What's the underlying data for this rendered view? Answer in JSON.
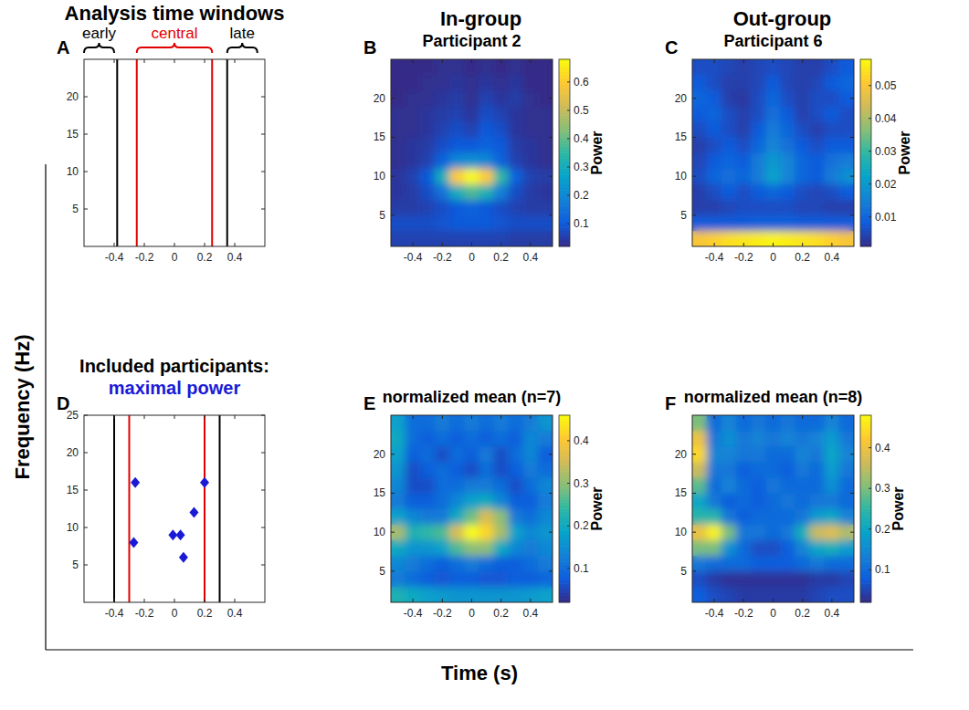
{
  "figure": {
    "column_titles": [
      "In-group",
      "Out-group"
    ],
    "ylabel": "Frequency (Hz)",
    "xlabel": "Time (s)"
  },
  "chart_data": [
    {
      "type": "lines",
      "letter": "A",
      "title": "Analysis time windows",
      "xlim": [
        -0.6,
        0.6
      ],
      "ylim": [
        0,
        25
      ],
      "xticks": [
        -0.4,
        -0.2,
        0,
        0.2,
        0.4
      ],
      "yticks": [
        5,
        10,
        15,
        20
      ],
      "vlines": [
        {
          "x": -0.38,
          "color": "#000000"
        },
        {
          "x": -0.25,
          "color": "#e00000"
        },
        {
          "x": 0.25,
          "color": "#e00000"
        },
        {
          "x": 0.35,
          "color": "#000000"
        }
      ],
      "windows": [
        {
          "label": "early",
          "color": "#000000",
          "range": [
            -0.6,
            -0.4
          ]
        },
        {
          "label": "central",
          "color": "#e00000",
          "range": [
            -0.25,
            0.25
          ]
        },
        {
          "label": "late",
          "color": "#000000",
          "range": [
            0.35,
            0.55
          ]
        }
      ]
    },
    {
      "type": "heatmap",
      "letter": "B",
      "title": "Participant 2",
      "xlim": [
        -0.55,
        0.55
      ],
      "ylim": [
        1,
        25
      ],
      "xticks": [
        -0.4,
        -0.2,
        0,
        0.2,
        0.4
      ],
      "yticks": [
        5,
        10,
        15,
        20
      ],
      "x_edges": [
        -0.55,
        -0.45,
        -0.35,
        -0.25,
        -0.15,
        -0.05,
        0.05,
        0.15,
        0.25,
        0.35,
        0.45,
        0.55
      ],
      "y_edges": [
        1,
        3,
        5,
        7,
        9,
        11,
        13,
        15,
        17,
        19,
        21,
        23,
        25
      ],
      "cells": [
        [
          0.06,
          0.06,
          0.06,
          0.06,
          0.06,
          0.06,
          0.06,
          0.06,
          0.05,
          0.05,
          0.05
        ],
        [
          0.08,
          0.08,
          0.08,
          0.09,
          0.1,
          0.1,
          0.1,
          0.09,
          0.08,
          0.08,
          0.08
        ],
        [
          0.05,
          0.05,
          0.06,
          0.08,
          0.1,
          0.12,
          0.1,
          0.08,
          0.06,
          0.05,
          0.05
        ],
        [
          0.04,
          0.05,
          0.08,
          0.15,
          0.3,
          0.38,
          0.32,
          0.18,
          0.08,
          0.05,
          0.04
        ],
        [
          0.04,
          0.06,
          0.1,
          0.3,
          0.6,
          0.68,
          0.6,
          0.35,
          0.12,
          0.06,
          0.05
        ],
        [
          0.03,
          0.04,
          0.06,
          0.12,
          0.2,
          0.22,
          0.2,
          0.12,
          0.06,
          0.04,
          0.03
        ],
        [
          0.03,
          0.04,
          0.05,
          0.08,
          0.1,
          0.1,
          0.12,
          0.1,
          0.05,
          0.04,
          0.03
        ],
        [
          0.03,
          0.03,
          0.04,
          0.06,
          0.08,
          0.06,
          0.1,
          0.08,
          0.04,
          0.03,
          0.03
        ],
        [
          0.03,
          0.03,
          0.04,
          0.05,
          0.06,
          0.04,
          0.08,
          0.06,
          0.04,
          0.03,
          0.03
        ],
        [
          0.02,
          0.03,
          0.03,
          0.04,
          0.05,
          0.03,
          0.06,
          0.04,
          0.05,
          0.03,
          0.02
        ],
        [
          0.02,
          0.02,
          0.03,
          0.03,
          0.04,
          0.03,
          0.04,
          0.03,
          0.04,
          0.02,
          0.02
        ],
        [
          0.02,
          0.02,
          0.02,
          0.03,
          0.03,
          0.02,
          0.03,
          0.02,
          0.03,
          0.02,
          0.02
        ]
      ],
      "color_range": [
        0.02,
        0.68
      ],
      "color_ticks": [
        0.1,
        0.2,
        0.3,
        0.4,
        0.5,
        0.6
      ],
      "colorbar_label": "Power"
    },
    {
      "type": "heatmap",
      "letter": "C",
      "title": "Participant 6",
      "xlim": [
        -0.55,
        0.55
      ],
      "ylim": [
        1,
        25
      ],
      "xticks": [
        -0.4,
        -0.2,
        0,
        0.2,
        0.4
      ],
      "yticks": [
        5,
        10,
        15,
        20
      ],
      "x_edges": [
        -0.55,
        -0.45,
        -0.35,
        -0.25,
        -0.15,
        -0.05,
        0.05,
        0.15,
        0.25,
        0.35,
        0.45,
        0.55
      ],
      "y_edges": [
        1,
        3,
        5,
        7,
        9,
        11,
        13,
        15,
        17,
        19,
        21,
        23,
        25
      ],
      "cells": [
        [
          0.05,
          0.052,
          0.054,
          0.055,
          0.056,
          0.057,
          0.056,
          0.055,
          0.054,
          0.052,
          0.05
        ],
        [
          0.008,
          0.008,
          0.008,
          0.008,
          0.009,
          0.009,
          0.009,
          0.008,
          0.008,
          0.008,
          0.008
        ],
        [
          0.004,
          0.004,
          0.005,
          0.006,
          0.006,
          0.006,
          0.006,
          0.005,
          0.005,
          0.004,
          0.004
        ],
        [
          0.004,
          0.006,
          0.008,
          0.006,
          0.008,
          0.01,
          0.008,
          0.006,
          0.005,
          0.006,
          0.008
        ],
        [
          0.006,
          0.01,
          0.012,
          0.01,
          0.014,
          0.022,
          0.016,
          0.01,
          0.008,
          0.014,
          0.018
        ],
        [
          0.005,
          0.008,
          0.01,
          0.008,
          0.014,
          0.02,
          0.016,
          0.01,
          0.008,
          0.012,
          0.014
        ],
        [
          0.004,
          0.006,
          0.008,
          0.006,
          0.01,
          0.016,
          0.012,
          0.008,
          0.006,
          0.008,
          0.008
        ],
        [
          0.006,
          0.008,
          0.006,
          0.004,
          0.008,
          0.014,
          0.01,
          0.006,
          0.004,
          0.006,
          0.006
        ],
        [
          0.008,
          0.01,
          0.006,
          0.004,
          0.006,
          0.012,
          0.008,
          0.004,
          0.006,
          0.008,
          0.006
        ],
        [
          0.01,
          0.008,
          0.004,
          0.003,
          0.006,
          0.01,
          0.006,
          0.004,
          0.006,
          0.006,
          0.008
        ],
        [
          0.008,
          0.006,
          0.004,
          0.004,
          0.005,
          0.008,
          0.005,
          0.004,
          0.005,
          0.008,
          0.01
        ],
        [
          0.006,
          0.006,
          0.005,
          0.004,
          0.005,
          0.006,
          0.005,
          0.004,
          0.004,
          0.006,
          0.008
        ]
      ],
      "color_range": [
        0.001,
        0.058
      ],
      "color_ticks": [
        0.01,
        0.02,
        0.03,
        0.04,
        0.05
      ],
      "colorbar_label": "Power"
    },
    {
      "type": "scatter",
      "letter": "D",
      "title": "Included participants:",
      "xlim": [
        -0.6,
        0.6
      ],
      "ylim": [
        0,
        25
      ],
      "xticks": [
        -0.4,
        -0.2,
        0,
        0.2,
        0.4
      ],
      "yticks": [
        5,
        10,
        15,
        20,
        25
      ],
      "vlines": [
        {
          "x": -0.4,
          "color": "#000000"
        },
        {
          "x": -0.3,
          "color": "#e00000"
        },
        {
          "x": 0.2,
          "color": "#e00000"
        },
        {
          "x": 0.3,
          "color": "#000000"
        }
      ],
      "series": [
        {
          "name": "maximal power",
          "color": "#1a1ad6",
          "marker": "diamond",
          "x": [
            -0.26,
            -0.27,
            -0.01,
            0.04,
            0.06,
            0.13,
            0.2
          ],
          "values": [
            16,
            8,
            9,
            9,
            6,
            12,
            16
          ]
        }
      ]
    },
    {
      "type": "heatmap",
      "letter": "E",
      "title": "normalized mean (n=7)",
      "xlim": [
        -0.55,
        0.55
      ],
      "ylim": [
        1,
        25
      ],
      "xticks": [
        -0.4,
        -0.2,
        0,
        0.2,
        0.4
      ],
      "yticks": [
        5,
        10,
        15,
        20
      ],
      "x_edges": [
        -0.55,
        -0.45,
        -0.35,
        -0.25,
        -0.15,
        -0.05,
        0.05,
        0.15,
        0.25,
        0.35,
        0.45,
        0.55
      ],
      "y_edges": [
        1,
        3,
        5,
        7,
        9,
        11,
        13,
        15,
        17,
        19,
        21,
        23,
        25
      ],
      "cells": [
        [
          0.22,
          0.2,
          0.18,
          0.17,
          0.16,
          0.16,
          0.16,
          0.16,
          0.16,
          0.17,
          0.18
        ],
        [
          0.12,
          0.1,
          0.08,
          0.07,
          0.08,
          0.08,
          0.07,
          0.07,
          0.08,
          0.08,
          0.09
        ],
        [
          0.14,
          0.12,
          0.1,
          0.08,
          0.1,
          0.12,
          0.1,
          0.08,
          0.08,
          0.1,
          0.12
        ],
        [
          0.2,
          0.16,
          0.16,
          0.18,
          0.26,
          0.3,
          0.3,
          0.2,
          0.14,
          0.12,
          0.14
        ],
        [
          0.32,
          0.22,
          0.24,
          0.26,
          0.36,
          0.46,
          0.42,
          0.32,
          0.18,
          0.14,
          0.16
        ],
        [
          0.18,
          0.14,
          0.12,
          0.12,
          0.2,
          0.28,
          0.36,
          0.3,
          0.12,
          0.1,
          0.14
        ],
        [
          0.12,
          0.08,
          0.08,
          0.1,
          0.14,
          0.18,
          0.2,
          0.14,
          0.08,
          0.08,
          0.12
        ],
        [
          0.14,
          0.06,
          0.06,
          0.1,
          0.1,
          0.12,
          0.12,
          0.1,
          0.06,
          0.1,
          0.14
        ],
        [
          0.16,
          0.06,
          0.08,
          0.1,
          0.08,
          0.06,
          0.1,
          0.06,
          0.08,
          0.12,
          0.1
        ],
        [
          0.18,
          0.08,
          0.1,
          0.06,
          0.1,
          0.08,
          0.12,
          0.06,
          0.1,
          0.14,
          0.08
        ],
        [
          0.2,
          0.1,
          0.08,
          0.1,
          0.08,
          0.1,
          0.08,
          0.1,
          0.08,
          0.14,
          0.12
        ],
        [
          0.18,
          0.1,
          0.1,
          0.12,
          0.1,
          0.12,
          0.1,
          0.12,
          0.1,
          0.12,
          0.16
        ]
      ],
      "color_range": [
        0.02,
        0.46
      ],
      "color_ticks": [
        0.1,
        0.2,
        0.3,
        0.4
      ],
      "colorbar_label": "Power"
    },
    {
      "type": "heatmap",
      "letter": "F",
      "title": "normalized mean (n=8)",
      "xlim": [
        -0.55,
        0.55
      ],
      "ylim": [
        1,
        25
      ],
      "xticks": [
        -0.4,
        -0.2,
        0,
        0.2,
        0.4
      ],
      "yticks": [
        5,
        10,
        15,
        20
      ],
      "x_edges": [
        -0.55,
        -0.45,
        -0.35,
        -0.25,
        -0.15,
        -0.05,
        0.05,
        0.15,
        0.25,
        0.35,
        0.45,
        0.55
      ],
      "y_edges": [
        1,
        3,
        5,
        7,
        9,
        11,
        13,
        15,
        17,
        19,
        21,
        23,
        25
      ],
      "cells": [
        [
          0.08,
          0.06,
          0.05,
          0.04,
          0.04,
          0.04,
          0.04,
          0.04,
          0.05,
          0.06,
          0.06
        ],
        [
          0.06,
          0.04,
          0.03,
          0.03,
          0.03,
          0.03,
          0.03,
          0.03,
          0.04,
          0.04,
          0.05
        ],
        [
          0.12,
          0.1,
          0.1,
          0.1,
          0.08,
          0.08,
          0.08,
          0.1,
          0.12,
          0.1,
          0.1
        ],
        [
          0.3,
          0.3,
          0.16,
          0.1,
          0.06,
          0.06,
          0.08,
          0.14,
          0.2,
          0.22,
          0.18
        ],
        [
          0.4,
          0.47,
          0.3,
          0.12,
          0.12,
          0.1,
          0.12,
          0.22,
          0.36,
          0.38,
          0.34
        ],
        [
          0.24,
          0.24,
          0.12,
          0.08,
          0.1,
          0.1,
          0.1,
          0.12,
          0.18,
          0.2,
          0.14
        ],
        [
          0.2,
          0.12,
          0.08,
          0.1,
          0.08,
          0.1,
          0.12,
          0.1,
          0.12,
          0.12,
          0.1
        ],
        [
          0.28,
          0.1,
          0.14,
          0.1,
          0.08,
          0.12,
          0.1,
          0.1,
          0.1,
          0.16,
          0.1
        ],
        [
          0.36,
          0.12,
          0.12,
          0.08,
          0.1,
          0.1,
          0.08,
          0.12,
          0.1,
          0.18,
          0.12
        ],
        [
          0.44,
          0.14,
          0.14,
          0.12,
          0.12,
          0.1,
          0.1,
          0.14,
          0.12,
          0.2,
          0.14
        ],
        [
          0.4,
          0.12,
          0.16,
          0.12,
          0.14,
          0.12,
          0.14,
          0.12,
          0.14,
          0.18,
          0.12
        ],
        [
          0.3,
          0.1,
          0.14,
          0.1,
          0.12,
          0.1,
          0.12,
          0.1,
          0.1,
          0.14,
          0.1
        ]
      ],
      "color_range": [
        0.02,
        0.48
      ],
      "color_ticks": [
        0.1,
        0.2,
        0.3,
        0.4
      ],
      "colorbar_label": "Power"
    }
  ]
}
